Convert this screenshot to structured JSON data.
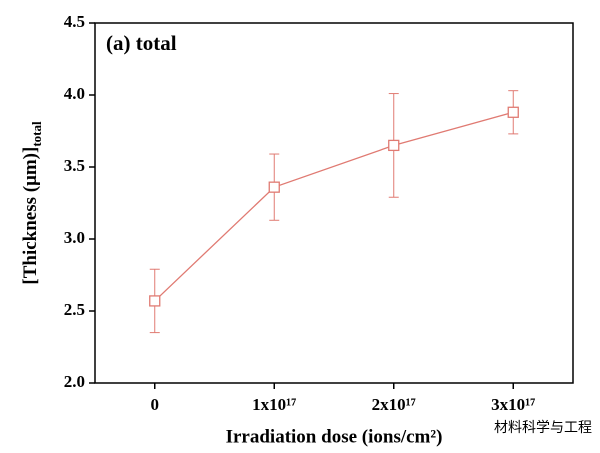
{
  "chart_data": {
    "type": "line",
    "annotation": "(a) total",
    "xlabel": "Irradiation dose (ions/cm²)",
    "ylabel": "[Thickness (μm)]",
    "ylabel_subscript": "total",
    "x": [
      0,
      100000000000000000,
      200000000000000000,
      300000000000000000
    ],
    "values": [
      2.57,
      3.36,
      3.65,
      3.88
    ],
    "errors": [
      0.22,
      0.23,
      0.36,
      0.15
    ],
    "color": "#e07a72",
    "xlim": [
      -50000000000000000,
      350000000000000000
    ],
    "xticks": [
      0,
      {
        "value": 100000000000000000,
        "label": "1x10¹⁷"
      },
      {
        "value": 200000000000000000,
        "label": "2x10¹⁷"
      },
      {
        "value": 300000000000000000,
        "label": "3x10¹⁷"
      }
    ],
    "ylim": [
      2.0,
      4.5
    ],
    "yticks": [
      {
        "value": 2.0,
        "label": "2.0"
      },
      2.5,
      {
        "value": 3.0,
        "label": "3.0"
      },
      3.5,
      {
        "value": 4.0,
        "label": "4.0"
      },
      4.5
    ],
    "grid": false,
    "watermark": "材料科学与工程"
  }
}
